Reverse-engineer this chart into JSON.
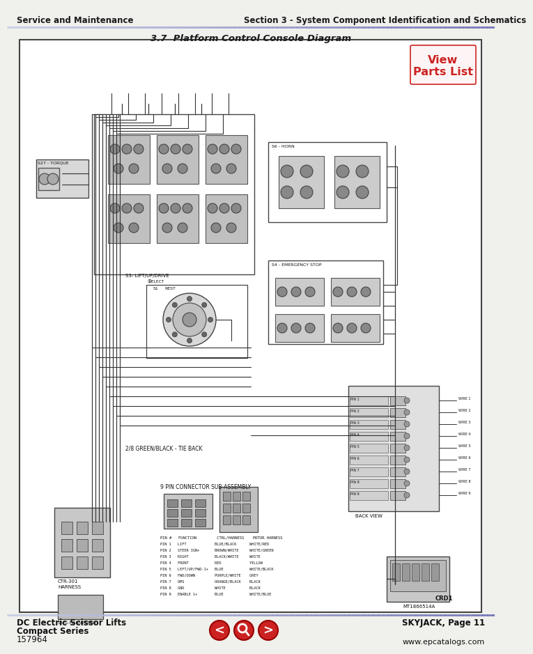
{
  "bg_color": "#f0f0ec",
  "header_left": "Service and Maintenance",
  "header_right": "Section 3 - System Component Identification and Schematics",
  "diagram_title": "3.7  Platform Control Console Diagram",
  "footer_left_line1": "DC Electric Scissor Lifts",
  "footer_left_line2": "Compact Series",
  "footer_left_line3": "157964",
  "footer_right": "SKYJACK, Page 11",
  "footer_website": "www.epcatalogs.com",
  "view_parts_label": "View\nParts List",
  "view_parts_color": "#cc2222",
  "diagram_border_color": "#444444",
  "wire_color": "#333333",
  "label_color": "#111111",
  "box_fill": "#e8e8e8",
  "box_fill2": "#d4d4d4",
  "nav_button_color": "#cc2222",
  "part_number": "MT1866514A",
  "header_line_left_color": "#b0b8cc",
  "header_line_right_color": "#3a4a7a"
}
